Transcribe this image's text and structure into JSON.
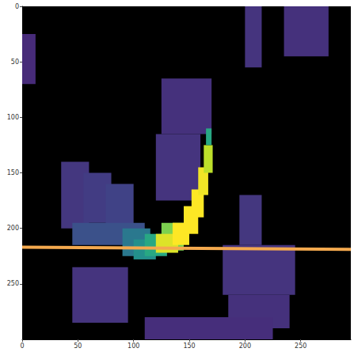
{
  "chart_data": {
    "type": "heatmap",
    "xlim": [
      0,
      295
    ],
    "ylim": [
      0,
      300
    ],
    "xticks": [
      0,
      50,
      100,
      150,
      200,
      250
    ],
    "yticks": [
      0,
      50,
      100,
      150,
      200,
      250
    ],
    "grid": false,
    "color_range": [
      0,
      1
    ],
    "cells": [
      [
        0,
        25,
        12,
        70,
        0.12
      ],
      [
        200,
        0,
        215,
        55,
        0.15
      ],
      [
        235,
        0,
        275,
        45,
        0.14
      ],
      [
        125,
        65,
        170,
        115,
        0.14
      ],
      [
        120,
        115,
        160,
        175,
        0.15
      ],
      [
        35,
        140,
        60,
        200,
        0.16
      ],
      [
        55,
        150,
        80,
        195,
        0.18
      ],
      [
        75,
        160,
        100,
        205,
        0.2
      ],
      [
        45,
        195,
        110,
        215,
        0.25
      ],
      [
        90,
        200,
        115,
        225,
        0.4
      ],
      [
        100,
        210,
        120,
        228,
        0.5
      ],
      [
        110,
        205,
        130,
        225,
        0.6
      ],
      [
        125,
        195,
        145,
        220,
        0.8
      ],
      [
        120,
        205,
        140,
        222,
        0.95
      ],
      [
        135,
        195,
        150,
        215,
        1
      ],
      [
        145,
        180,
        158,
        205,
        1
      ],
      [
        152,
        165,
        163,
        190,
        1
      ],
      [
        158,
        145,
        167,
        170,
        0.98
      ],
      [
        163,
        125,
        171,
        150,
        0.9
      ],
      [
        165,
        110,
        170,
        125,
        0.6
      ],
      [
        195,
        170,
        215,
        215,
        0.16
      ],
      [
        180,
        215,
        245,
        260,
        0.15
      ],
      [
        185,
        260,
        240,
        290,
        0.14
      ],
      [
        45,
        235,
        95,
        285,
        0.15
      ],
      [
        110,
        280,
        225,
        300,
        0.13
      ]
    ],
    "line": {
      "x": [
        0,
        295
      ],
      "y": [
        217,
        219
      ],
      "color": "#f4a94e"
    }
  }
}
